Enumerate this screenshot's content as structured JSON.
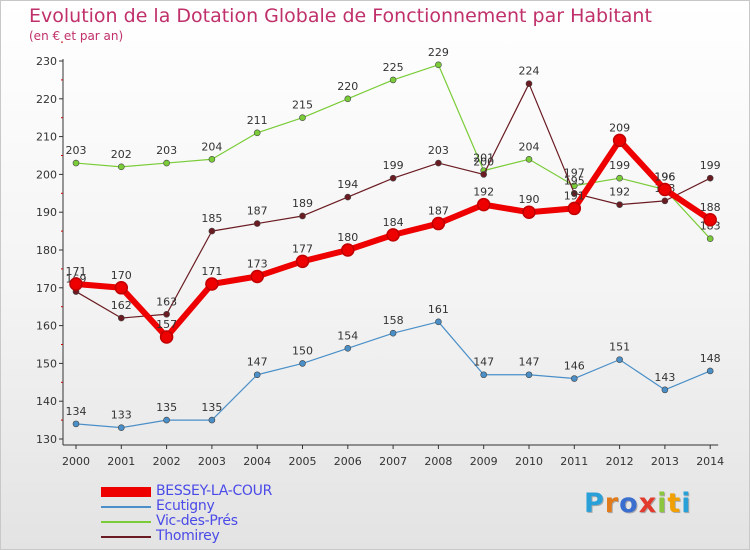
{
  "chart_data": {
    "type": "line",
    "title": "Evolution de la Dotation Globale de Fonctionnement par Habitant",
    "subtitle": "(en € et par an)",
    "xlabel": "",
    "ylabel": "",
    "ylim": [
      130,
      230
    ],
    "yticks": [
      130,
      140,
      150,
      160,
      170,
      180,
      190,
      200,
      210,
      220,
      230
    ],
    "categories": [
      "2000",
      "2001",
      "2002",
      "2003",
      "2004",
      "2005",
      "2006",
      "2007",
      "2008",
      "2009",
      "2010",
      "2011",
      "2012",
      "2013",
      "2014"
    ],
    "series": [
      {
        "name": "Ecutigny",
        "color": "#4a8fc8",
        "values": [
          134,
          133,
          135,
          135,
          147,
          150,
          154,
          158,
          161,
          147,
          147,
          146,
          151,
          143,
          148
        ]
      },
      {
        "name": "Vic-des-Prés",
        "color": "#7acc38",
        "values": [
          203,
          202,
          203,
          204,
          211,
          215,
          220,
          225,
          229,
          201,
          204,
          197,
          199,
          196,
          183
        ]
      },
      {
        "name": "Thomirey",
        "color": "#6b1c22",
        "values": [
          169,
          162,
          163,
          185,
          187,
          189,
          194,
          199,
          203,
          200,
          224,
          195,
          192,
          193,
          199
        ]
      },
      {
        "name": "BESSEY-LA-COUR",
        "color": "#ee0000",
        "values": [
          171,
          170,
          157,
          171,
          173,
          177,
          180,
          184,
          187,
          192,
          190,
          191,
          209,
          196,
          188
        ]
      }
    ],
    "legend": [
      "BESSEY-LA-COUR",
      "Ecutigny",
      "Vic-des-Prés",
      "Thomirey"
    ],
    "legend_position": "bottom-left",
    "grid": false
  },
  "logo": {
    "letters": [
      "P",
      "r",
      "o",
      "x",
      "i",
      "t",
      "i"
    ],
    "colors": [
      "#2aa0d8",
      "#e07a1a",
      "#3a6fcf",
      "#e23b2e",
      "#8cc63f",
      "#f0a000",
      "#2aa0d8"
    ]
  }
}
